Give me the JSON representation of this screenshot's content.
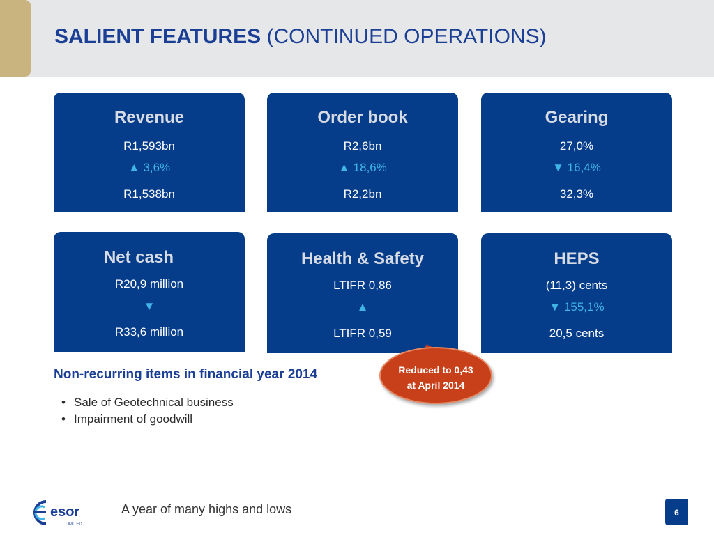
{
  "header": {
    "title_bold": "SALIENT FEATURES",
    "title_rest": "(CONTINUED OPERATIONS)"
  },
  "cards": [
    {
      "heading": "Revenue",
      "current": "R1,593bn",
      "change": "▲ 3,6%",
      "previous": "R1,538bn"
    },
    {
      "heading": "Order book",
      "current": "R2,6bn",
      "change": "▲ 18,6%",
      "previous": "R2,2bn"
    },
    {
      "heading": "Gearing",
      "current": "27,0%",
      "change": "▼ 16,4%",
      "previous": "32,3%"
    },
    {
      "heading": "Net cash",
      "current": "R20,9 million",
      "change": "▼",
      "previous": "R33,6 million"
    },
    {
      "heading": "Health & Safety",
      "current": "LTIFR 0,86",
      "change": "▲",
      "previous": "LTIFR 0,59"
    },
    {
      "heading": "HEPS",
      "current": "(11,3) cents",
      "change": "▼ 155,1%",
      "previous": "20,5 cents"
    }
  ],
  "callout": {
    "line1": "Reduced to 0,43",
    "line2": "at April 2014"
  },
  "non_recurring": {
    "title": "Non-recurring items in financial year 2014",
    "items": [
      "Sale of Geotechnical business",
      "Impairment of goodwill"
    ]
  },
  "footer": {
    "logo_text": "esor",
    "logo_sub": "LIMITED",
    "tagline": "A year of many highs and lows",
    "page_number": "6"
  },
  "colors": {
    "card_blue": "#053d8b",
    "accent_cyan": "#41b4e6",
    "title_blue": "#1b3f95",
    "callout_red": "#c8401a",
    "header_gold": "#c9b37e"
  }
}
